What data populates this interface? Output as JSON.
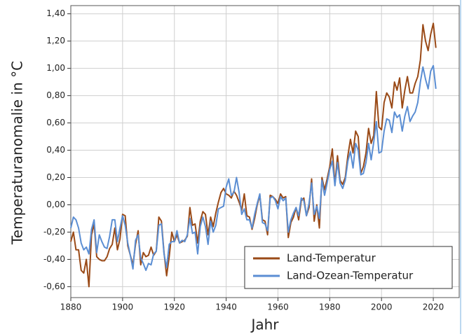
{
  "chart_data": {
    "type": "line",
    "x_label": "Jahr",
    "y_label": "Temperaturanomalie in °C",
    "x": [
      1880,
      1881,
      1882,
      1883,
      1884,
      1885,
      1886,
      1887,
      1888,
      1889,
      1890,
      1891,
      1892,
      1893,
      1894,
      1895,
      1896,
      1897,
      1898,
      1899,
      1900,
      1901,
      1902,
      1903,
      1904,
      1905,
      1906,
      1907,
      1908,
      1909,
      1910,
      1911,
      1912,
      1913,
      1914,
      1915,
      1916,
      1917,
      1918,
      1919,
      1920,
      1921,
      1922,
      1923,
      1924,
      1925,
      1926,
      1927,
      1928,
      1929,
      1930,
      1931,
      1932,
      1933,
      1934,
      1935,
      1936,
      1937,
      1938,
      1939,
      1940,
      1941,
      1942,
      1943,
      1944,
      1945,
      1946,
      1947,
      1948,
      1949,
      1950,
      1951,
      1952,
      1953,
      1954,
      1955,
      1956,
      1957,
      1958,
      1959,
      1960,
      1961,
      1962,
      1963,
      1964,
      1965,
      1966,
      1967,
      1968,
      1969,
      1970,
      1971,
      1972,
      1973,
      1974,
      1975,
      1976,
      1977,
      1978,
      1979,
      1980,
      1981,
      1982,
      1983,
      1984,
      1985,
      1986,
      1987,
      1988,
      1989,
      1990,
      1991,
      1992,
      1993,
      1994,
      1995,
      1996,
      1997,
      1998,
      1999,
      2000,
      2001,
      2002,
      2003,
      2004,
      2005,
      2006,
      2007,
      2008,
      2009,
      2010,
      2011,
      2012,
      2013,
      2014,
      2015,
      2016,
      2017,
      2018,
      2019,
      2020,
      2021
    ],
    "series": [
      {
        "name": "Land-Temperatur",
        "color": "#9a4a17",
        "values": [
          -0.27,
          -0.2,
          -0.33,
          -0.33,
          -0.48,
          -0.5,
          -0.4,
          -0.6,
          -0.22,
          -0.14,
          -0.38,
          -0.4,
          -0.41,
          -0.41,
          -0.38,
          -0.32,
          -0.29,
          -0.17,
          -0.33,
          -0.25,
          -0.07,
          -0.08,
          -0.3,
          -0.37,
          -0.44,
          -0.29,
          -0.19,
          -0.44,
          -0.35,
          -0.38,
          -0.37,
          -0.31,
          -0.37,
          -0.34,
          -0.09,
          -0.12,
          -0.35,
          -0.52,
          -0.38,
          -0.2,
          -0.27,
          -0.22,
          -0.28,
          -0.27,
          -0.26,
          -0.23,
          -0.02,
          -0.15,
          -0.14,
          -0.28,
          -0.12,
          -0.05,
          -0.07,
          -0.22,
          -0.09,
          -0.16,
          -0.06,
          0.02,
          0.09,
          0.12,
          0.08,
          0.07,
          0.05,
          0.1,
          0.07,
          0.02,
          -0.04,
          0.08,
          -0.08,
          -0.09,
          -0.18,
          -0.1,
          0.0,
          0.07,
          -0.11,
          -0.12,
          -0.22,
          0.07,
          0.06,
          0.04,
          0.01,
          0.08,
          0.05,
          0.06,
          -0.24,
          -0.13,
          -0.09,
          -0.02,
          -0.11,
          0.03,
          0.05,
          -0.08,
          -0.02,
          0.19,
          -0.12,
          0.0,
          -0.17,
          0.2,
          0.11,
          0.19,
          0.28,
          0.41,
          0.15,
          0.36,
          0.18,
          0.15,
          0.2,
          0.36,
          0.48,
          0.38,
          0.54,
          0.5,
          0.23,
          0.28,
          0.38,
          0.56,
          0.45,
          0.51,
          0.83,
          0.57,
          0.55,
          0.75,
          0.82,
          0.79,
          0.71,
          0.9,
          0.84,
          0.93,
          0.71,
          0.84,
          0.94,
          0.82,
          0.82,
          0.89,
          0.94,
          1.06,
          1.32,
          1.2,
          1.13,
          1.25,
          1.33,
          1.15
        ]
      },
      {
        "name": "Land-Ozean-Temperatur",
        "color": "#5b8ed3",
        "values": [
          -0.17,
          -0.09,
          -0.11,
          -0.17,
          -0.28,
          -0.33,
          -0.31,
          -0.36,
          -0.18,
          -0.11,
          -0.35,
          -0.22,
          -0.27,
          -0.31,
          -0.32,
          -0.23,
          -0.11,
          -0.11,
          -0.27,
          -0.17,
          -0.08,
          -0.15,
          -0.28,
          -0.37,
          -0.47,
          -0.26,
          -0.22,
          -0.39,
          -0.43,
          -0.48,
          -0.43,
          -0.44,
          -0.36,
          -0.34,
          -0.15,
          -0.14,
          -0.36,
          -0.46,
          -0.29,
          -0.27,
          -0.27,
          -0.19,
          -0.28,
          -0.26,
          -0.27,
          -0.22,
          -0.1,
          -0.21,
          -0.2,
          -0.36,
          -0.16,
          -0.09,
          -0.16,
          -0.29,
          -0.12,
          -0.2,
          -0.15,
          -0.03,
          -0.02,
          -0.01,
          0.13,
          0.19,
          0.07,
          0.09,
          0.2,
          0.09,
          -0.07,
          -0.03,
          -0.11,
          -0.11,
          -0.17,
          -0.07,
          0.01,
          0.08,
          -0.13,
          -0.14,
          -0.19,
          0.05,
          0.06,
          0.03,
          -0.03,
          0.06,
          0.03,
          0.05,
          -0.2,
          -0.11,
          -0.06,
          -0.02,
          -0.08,
          0.05,
          0.03,
          -0.08,
          0.01,
          0.16,
          -0.07,
          -0.01,
          -0.1,
          0.18,
          0.07,
          0.16,
          0.26,
          0.32,
          0.14,
          0.31,
          0.16,
          0.12,
          0.18,
          0.32,
          0.39,
          0.27,
          0.45,
          0.4,
          0.22,
          0.23,
          0.31,
          0.45,
          0.33,
          0.46,
          0.61,
          0.38,
          0.39,
          0.54,
          0.63,
          0.62,
          0.53,
          0.68,
          0.64,
          0.66,
          0.54,
          0.65,
          0.72,
          0.61,
          0.65,
          0.68,
          0.75,
          0.9,
          1.01,
          0.92,
          0.85,
          0.98,
          1.02,
          0.85
        ]
      }
    ],
    "xlim": [
      1880,
      2030
    ],
    "xticks": [
      1880,
      1900,
      1920,
      1940,
      1960,
      1980,
      2000,
      2020
    ],
    "ylim": [
      -0.68,
      1.46
    ],
    "yticks": [
      {
        "value": -0.6,
        "label": "-0,60"
      },
      {
        "value": -0.4,
        "label": "-0,40"
      },
      {
        "value": -0.2,
        "label": "-0,20"
      },
      {
        "value": 0,
        "label": "0,00"
      },
      {
        "value": 0.2,
        "label": "0,20"
      },
      {
        "value": 0.4,
        "label": "0,40"
      },
      {
        "value": 0.6,
        "label": "0,60"
      },
      {
        "value": 0.8,
        "label": "0,80"
      },
      {
        "value": 1.0,
        "label": "1,00"
      },
      {
        "value": 1.2,
        "label": "1,20"
      },
      {
        "value": 1.4,
        "label": "1,40"
      }
    ],
    "grid": true,
    "legend": "lower right"
  }
}
